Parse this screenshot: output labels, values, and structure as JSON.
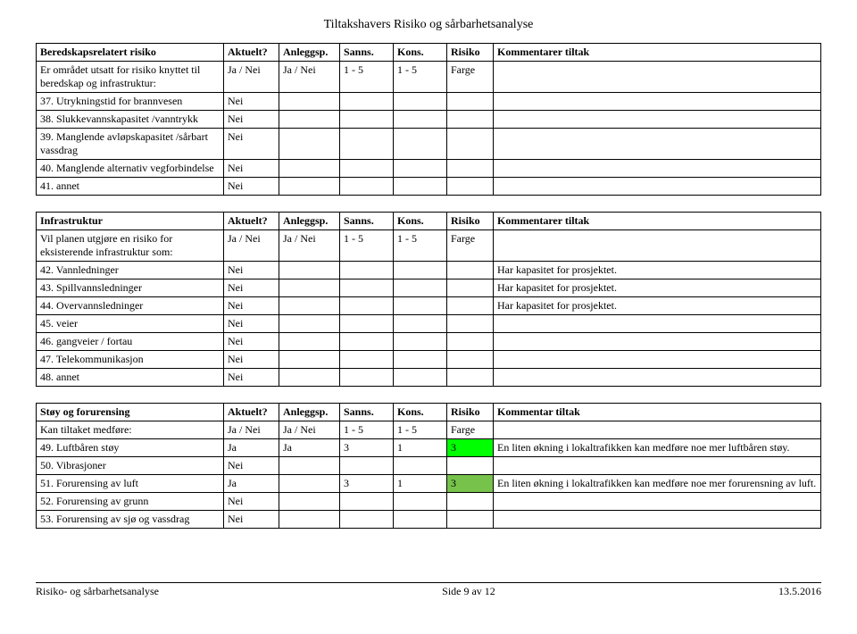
{
  "doc_title": "Tiltakshavers Risiko og sårbarhetsanalyse",
  "headers": {
    "col1_blank": "",
    "aktuelt": "Aktuelt?",
    "anleggsp": "Anleggsp.",
    "sanns": "Sanns.",
    "kons": "Kons.",
    "risiko": "Risiko",
    "kommentarer": "Kommentarer tiltak",
    "kommentar_singular": "Kommentar tiltak"
  },
  "subheader_generic": {
    "aktuelt": "Ja / Nei",
    "anleggsp": "Ja / Nei",
    "sanns": "1 ­- 5",
    "kons": "1 ­- 5",
    "risiko": "Farge"
  },
  "table1": {
    "title": "Beredskapsrelatert risiko",
    "sub_label": "Er området utsatt for risiko knyttet til beredskap og infrastruktur:",
    "rows": [
      {
        "label": "37. Utrykningstid for brannvesen",
        "aktuelt": "Nei"
      },
      {
        "label": "38. Slukkevannskapasitet /vanntrykk",
        "aktuelt": "Nei"
      },
      {
        "label": "39. Manglende avløpskapasitet /sårbart vassdrag",
        "aktuelt": "Nei"
      },
      {
        "label": "40. Manglende alternativ vegforbindelse",
        "aktuelt": "Nei"
      },
      {
        "label": "41. annet",
        "aktuelt": "Nei"
      }
    ]
  },
  "table2": {
    "title": "Infrastruktur",
    "sub_label": "Vil planen utgjøre en risiko for eksisterende infrastruktur som:",
    "rows": [
      {
        "label": "42. Vannledninger",
        "aktuelt": "Nei",
        "komm": "Har kapasitet for prosjektet."
      },
      {
        "label": "43. Spillvannsledninger",
        "aktuelt": "Nei",
        "komm": "Har kapasitet for prosjektet."
      },
      {
        "label": "44. Overvannsledninger",
        "aktuelt": "Nei",
        "komm": "Har kapasitet for prosjektet."
      },
      {
        "label": "45. veier",
        "aktuelt": "Nei"
      },
      {
        "label": "46. gangveier / fortau",
        "aktuelt": "Nei"
      },
      {
        "label": "47. Telekommunikasjon",
        "aktuelt": "Nei"
      },
      {
        "label": "48. annet",
        "aktuelt": "Nei"
      }
    ]
  },
  "table3": {
    "title": "Støy og forurensing",
    "sub_label": "Kan tiltaket medføre:",
    "rows": [
      {
        "label": "49. Luftbåren støy",
        "aktuelt": "Ja",
        "anleggsp": "Ja",
        "sanns": "3",
        "kons": "1",
        "risiko": "3",
        "risiko_color": "#00ff00",
        "komm": "En liten økning i lokaltrafikken kan medføre noe mer luftbåren støy."
      },
      {
        "label": "50. Vibrasjoner",
        "aktuelt": "Nei"
      },
      {
        "label": "51. Forurensing av luft",
        "aktuelt": "Ja",
        "sanns": "3",
        "kons": "1",
        "risiko": "3",
        "risiko_color": "#77c24b",
        "komm": "En liten økning i lokaltrafikken kan medføre noe mer forurensning av luft."
      },
      {
        "label": "52. Forurensing av grunn",
        "aktuelt": "Nei"
      },
      {
        "label": "53. Forurensing av sjø og vassdrag",
        "aktuelt": "Nei"
      }
    ]
  },
  "footer": {
    "left": "Risiko- og sårbarhetsanalyse",
    "center": "Side 9 av 12",
    "right": "13.5.2016"
  }
}
